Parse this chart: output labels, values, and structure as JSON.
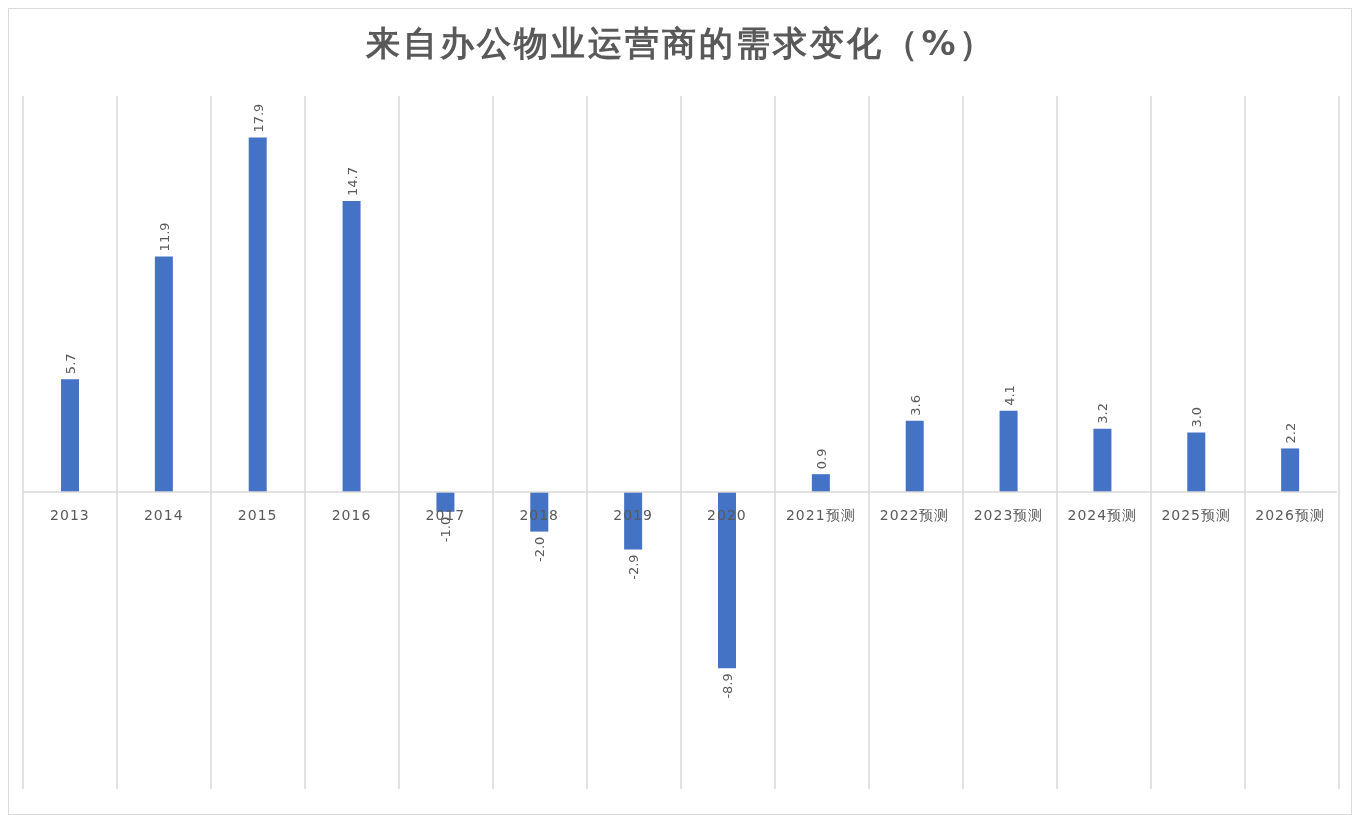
{
  "chart_data": {
    "type": "bar",
    "title": "来自办公物业运营商的需求变化（%）",
    "categories": [
      "2013",
      "2014",
      "2015",
      "2016",
      "2017",
      "2018",
      "2019",
      "2020",
      "2021预测",
      "2022预测",
      "2023预测",
      "2024预测",
      "2025预测",
      "2026预测"
    ],
    "values": [
      5.7,
      11.9,
      17.9,
      14.7,
      -1.0,
      -2.0,
      -2.9,
      -8.9,
      0.9,
      3.6,
      4.1,
      3.2,
      3.0,
      2.2
    ],
    "value_labels": [
      "5.7",
      "11.9",
      "17.9",
      "14.7",
      "-1.0",
      "-2.0",
      "-2.9",
      "-8.9",
      "0.9",
      "3.6",
      "4.1",
      "3.2",
      "3.0",
      "2.2"
    ],
    "color": "#4472c4",
    "ylim": [
      -15,
      20
    ],
    "grid": "x"
  }
}
